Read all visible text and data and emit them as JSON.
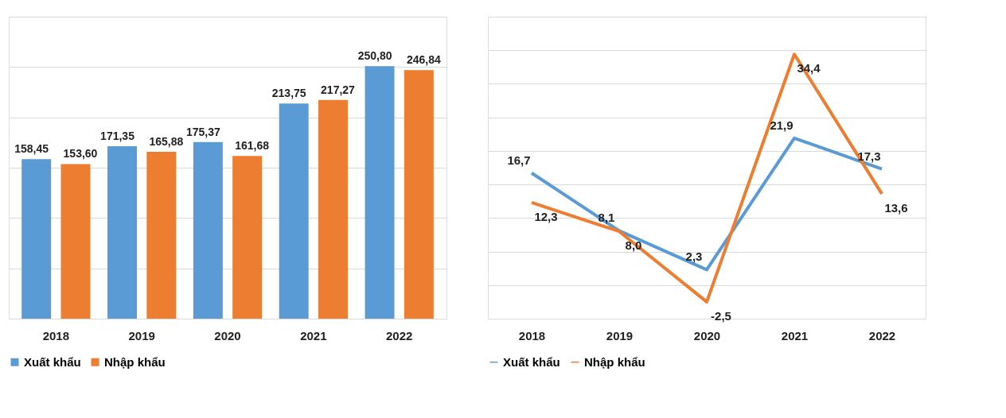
{
  "chart_data": [
    {
      "type": "bar",
      "categories": [
        "2018",
        "2019",
        "2020",
        "2021",
        "2022"
      ],
      "series": [
        {
          "name": "Xuất khẩu",
          "color": "#5b9bd5",
          "values": [
            158.45,
            171.35,
            175.37,
            213.75,
            250.8
          ],
          "value_labels": [
            "158,45",
            "171,35",
            "175,37",
            "213,75",
            "250,80"
          ]
        },
        {
          "name": "Nhập khẩu",
          "color": "#ed7d31",
          "values": [
            153.6,
            165.88,
            161.68,
            217.27,
            246.84
          ],
          "value_labels": [
            "153,60",
            "165,88",
            "161,68",
            "217,27",
            "246,84"
          ]
        }
      ],
      "ylim": [
        0,
        300
      ],
      "yticks": [
        {
          "value": 0,
          "label": null
        },
        {
          "value": 50,
          "label": null
        },
        {
          "value": 100,
          "label": null
        },
        {
          "value": 150,
          "label": null
        },
        {
          "value": 200,
          "label": null
        },
        {
          "value": 250,
          "label": null
        },
        {
          "value": 300,
          "label": null
        }
      ],
      "grid": "y",
      "legend": "bottom",
      "tick_labels": "x"
    },
    {
      "type": "line",
      "categories": [
        "2018",
        "2019",
        "2020",
        "2021",
        "2022"
      ],
      "series": [
        {
          "name": "Xuất khẩu",
          "color": "#5b9bd5",
          "values": [
            16.7,
            8.1,
            2.3,
            21.9,
            17.3
          ],
          "value_labels": [
            "16,7",
            "8,1",
            "2,3",
            "21,9",
            "17,3"
          ]
        },
        {
          "name": "Nhập khẩu",
          "color": "#ed7d31",
          "values": [
            12.3,
            8.0,
            -2.5,
            34.4,
            13.6
          ],
          "value_labels": [
            "12,3",
            "8,0",
            "-2,5",
            "34,4",
            "13,6"
          ]
        }
      ],
      "ylim": [
        -5,
        40
      ],
      "yticks": [
        {
          "value": -5,
          "label": null
        },
        {
          "value": 0,
          "label": null
        },
        {
          "value": 5,
          "label": null
        },
        {
          "value": 10,
          "label": null
        },
        {
          "value": 15,
          "label": null
        },
        {
          "value": 20,
          "label": null
        },
        {
          "value": 25,
          "label": null
        },
        {
          "value": 30,
          "label": null
        },
        {
          "value": 35,
          "label": null
        },
        {
          "value": 40,
          "label": null
        }
      ],
      "grid": "y",
      "legend": "bottom",
      "tick_labels": "x",
      "marker": "none",
      "line_style": "solid"
    }
  ]
}
